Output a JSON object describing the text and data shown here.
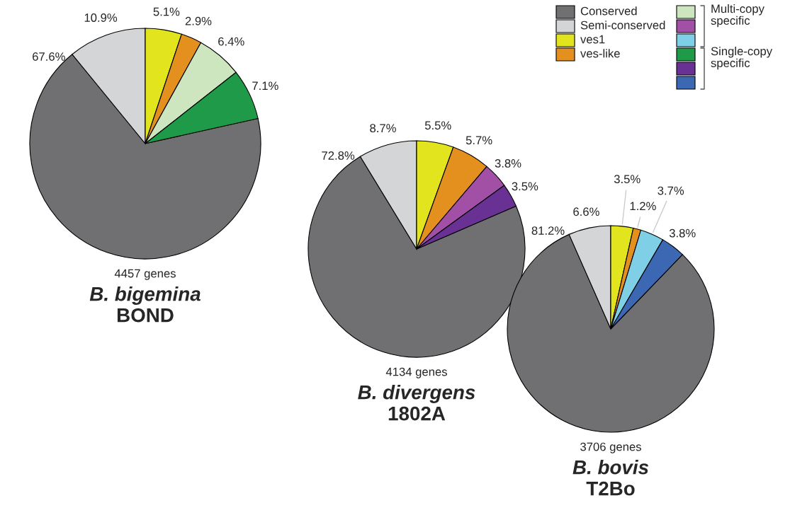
{
  "chart_data": [
    {
      "type": "pie",
      "title": "B. bigemina",
      "subtitle": "BOND",
      "annotations": [
        "4457 genes"
      ],
      "legend": "top right",
      "categories": [
        "Conserved",
        "Semi-conserved",
        "ves1",
        "ves-like",
        "Multi-copy specific",
        "Single-copy specific"
      ],
      "values": [
        67.6,
        10.9,
        5.1,
        2.9,
        6.4,
        7.1
      ],
      "colors": [
        "#707072",
        "#d4d5d7",
        "#e2e41e",
        "#e3901f",
        "#cde6c0",
        "#1e9a48"
      ],
      "value_labels": [
        "67.6%",
        "10.9%",
        "5.1%",
        "2.9%",
        "6.4%",
        "7.1%"
      ]
    },
    {
      "type": "pie",
      "title": "B. divergens",
      "subtitle": "1802A",
      "annotations": [
        "4134 genes"
      ],
      "categories": [
        null,
        null,
        null,
        null,
        null,
        null
      ],
      "values": [
        72.8,
        8.7,
        5.5,
        5.7,
        3.8,
        3.5
      ],
      "colors": [
        "#707072",
        "#d4d5d7",
        "#e2e41e",
        "#e3901f",
        "#a250a6",
        "#6a3194"
      ],
      "value_labels": [
        "72.8%",
        "8.7%",
        "5.5%",
        "5.7%",
        "3.8%",
        "3.5%"
      ]
    },
    {
      "type": "pie",
      "title": "B. bovis",
      "subtitle": "T2Bo",
      "annotations": [
        "3706 genes"
      ],
      "categories": [
        null,
        null,
        null,
        null,
        null,
        null
      ],
      "values": [
        81.2,
        6.6,
        3.5,
        1.2,
        3.7,
        3.8
      ],
      "colors": [
        "#707072",
        "#d4d5d7",
        "#e2e41e",
        "#e3901f",
        "#7fd0e6",
        "#3b67b3"
      ],
      "value_labels": [
        "81.2%",
        "6.6%",
        "3.5%",
        "1.2%",
        "3.7%",
        "3.8%"
      ]
    }
  ]
}
